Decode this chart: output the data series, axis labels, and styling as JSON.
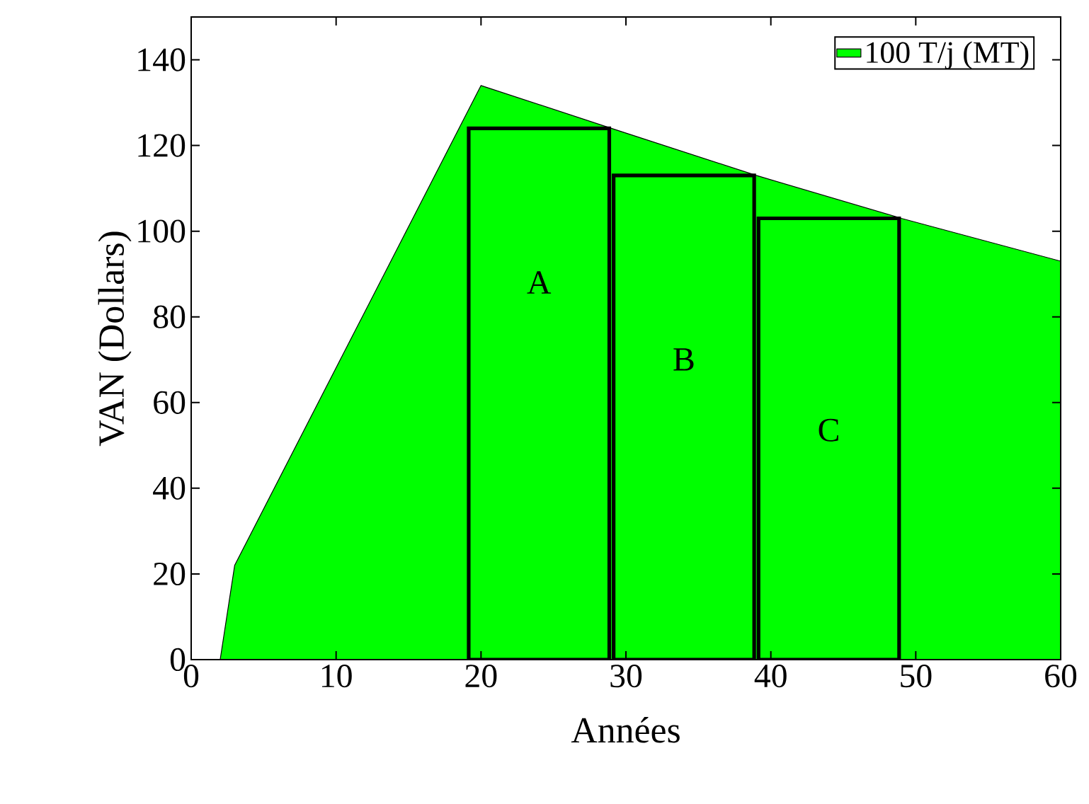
{
  "chart_data": {
    "type": "area",
    "xlabel": "Années",
    "ylabel": "VAN (Dollars)",
    "xlim": [
      0,
      60
    ],
    "ylim": [
      0,
      150
    ],
    "xticks": [
      0,
      10,
      20,
      30,
      40,
      50,
      60
    ],
    "yticks": [
      0,
      20,
      40,
      60,
      80,
      100,
      120,
      140
    ],
    "legend": "top right",
    "series": [
      {
        "name": "100 T/j (MT)",
        "color": "#00ff00",
        "x": [
          0,
          2,
          3,
          20,
          29,
          39,
          49,
          60
        ],
        "values": [
          0,
          0,
          22,
          134,
          124,
          113,
          103,
          93
        ]
      },
      {
        "type": "bar",
        "color": "#00ff00",
        "x": [
          24,
          34,
          44
        ],
        "values": [
          124,
          113,
          103
        ]
      }
    ],
    "annotations": [
      "A",
      "B",
      "C"
    ]
  }
}
